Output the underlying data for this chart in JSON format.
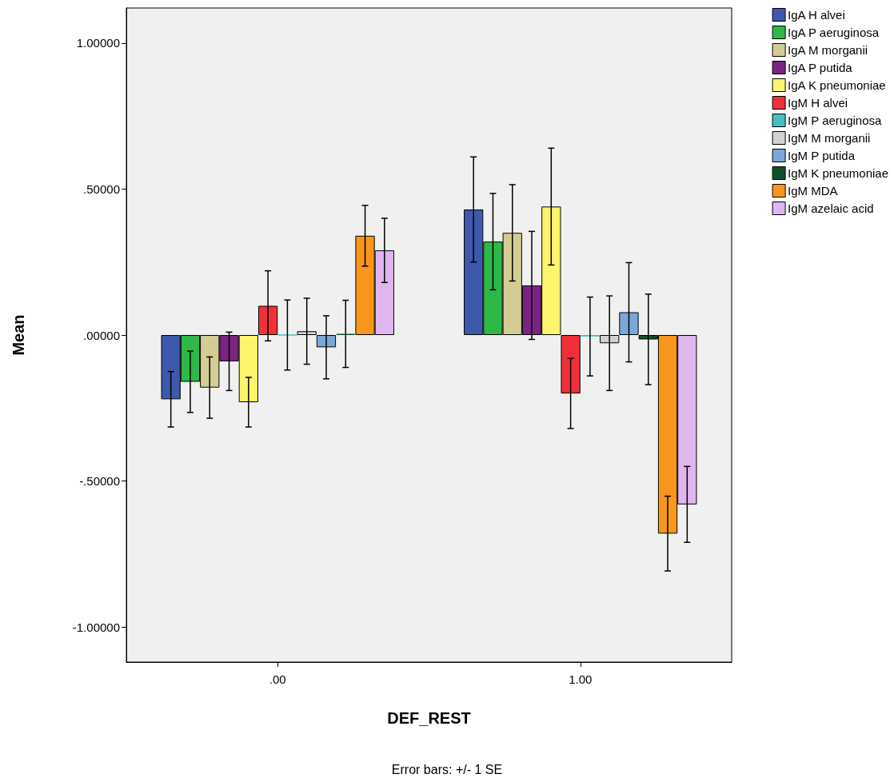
{
  "chart_data": {
    "type": "bar",
    "xlabel": "DEF_REST",
    "ylabel": "Mean",
    "categories": [
      ".00",
      "1.00"
    ],
    "series": [
      {
        "name": "IgA H alvei",
        "color": "#3e58ac",
        "values": [
          -0.22,
          0.43
        ],
        "errors": [
          0.095,
          0.18
        ]
      },
      {
        "name": "IgA P aeruginosa",
        "color": "#2eb848",
        "values": [
          -0.16,
          0.32
        ],
        "errors": [
          0.105,
          0.165
        ]
      },
      {
        "name": "IgA M morganii",
        "color": "#d4cc95",
        "values": [
          -0.18,
          0.35
        ],
        "errors": [
          0.105,
          0.165
        ]
      },
      {
        "name": "IgA P putida",
        "color": "#7b2383",
        "values": [
          -0.09,
          0.17
        ],
        "errors": [
          0.1,
          0.185
        ]
      },
      {
        "name": "IgA K pneumoniae",
        "color": "#fbf46c",
        "values": [
          -0.23,
          0.44
        ],
        "errors": [
          0.085,
          0.2
        ]
      },
      {
        "name": "IgM H alvei",
        "color": "#ef3038",
        "values": [
          0.1,
          -0.2
        ],
        "errors": [
          0.12,
          0.12
        ]
      },
      {
        "name": "IgM P aeruginosa",
        "color": "#45c0c0",
        "values": [
          0.0,
          -0.005
        ],
        "errors": [
          0.12,
          0.135
        ]
      },
      {
        "name": "IgM M morganii",
        "color": "#d2d2d2",
        "values": [
          0.013,
          -0.028
        ],
        "errors": [
          0.113,
          0.162
        ]
      },
      {
        "name": "IgM P putida",
        "color": "#7aa8d8",
        "values": [
          -0.042,
          0.078
        ],
        "errors": [
          0.108,
          0.17
        ]
      },
      {
        "name": "IgM K pneumoniae",
        "color": "#0d5128",
        "values": [
          0.004,
          -0.015
        ],
        "errors": [
          0.115,
          0.155
        ]
      },
      {
        "name": "IgM MDA",
        "color": "#f7961c",
        "values": [
          0.34,
          -0.68
        ],
        "errors": [
          0.104,
          0.128
        ]
      },
      {
        "name": "IgM azelaic acid",
        "color": "#dfb6ee",
        "values": [
          0.29,
          -0.58
        ],
        "errors": [
          0.11,
          0.13
        ]
      }
    ],
    "ylim": [
      -1.12,
      1.12
    ],
    "yticks": [
      {
        "value": -1,
        "label": "-1.00000"
      },
      {
        "value": -0.5,
        "label": "-.50000"
      },
      {
        "value": 0,
        "label": ".00000"
      },
      {
        "value": 0.5,
        "label": ".50000"
      },
      {
        "value": 1,
        "label": "1.00000"
      }
    ],
    "grid": false,
    "legend": "right",
    "annotations": [
      "Error bars: +/- 1 SE"
    ]
  }
}
